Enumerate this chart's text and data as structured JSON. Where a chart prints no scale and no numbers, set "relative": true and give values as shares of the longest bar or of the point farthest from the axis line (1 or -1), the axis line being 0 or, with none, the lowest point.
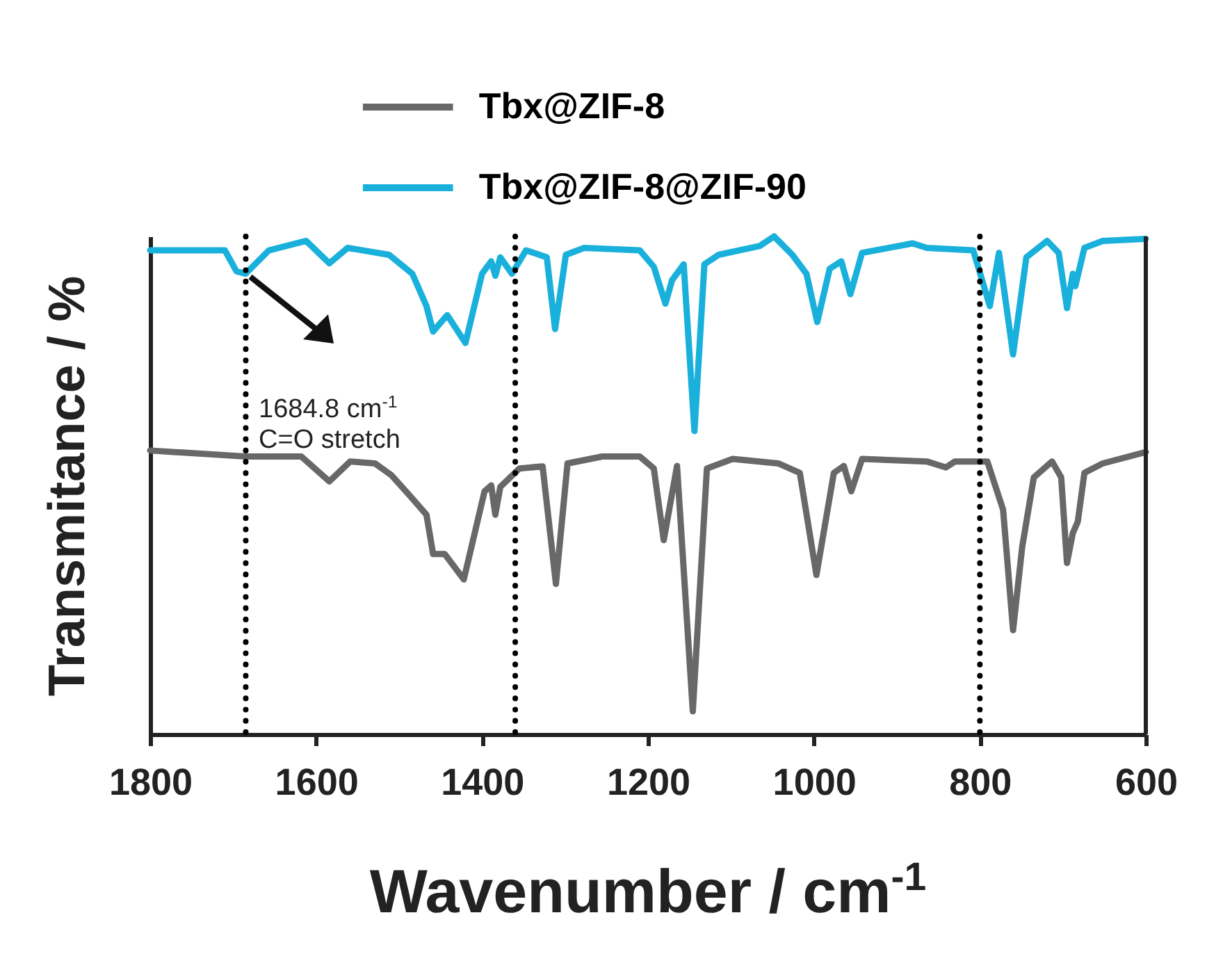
{
  "chart_data": {
    "type": "line",
    "relative": true,
    "xlabel": "Wavenumber / cm$^{-1}$",
    "ylabel": "Transmitance / %",
    "xlim": [
      1800,
      600
    ],
    "xticks": [
      1800,
      1600,
      1400,
      1200,
      1000,
      800,
      600
    ],
    "legend": "top",
    "grid": false,
    "marker": "none",
    "line_style": "solid",
    "series": [
      {
        "name": "Tbx@ZIF-8",
        "color": "#686868",
        "x": [
          1800,
          1685,
          1618,
          1584,
          1559,
          1529,
          1509,
          1489,
          1467,
          1459,
          1445,
          1422,
          1397,
          1389,
          1384,
          1378,
          1355,
          1327,
          1311,
          1297,
          1255,
          1210,
          1193,
          1181,
          1165,
          1146,
          1129,
          1098,
          1043,
          1017,
          997,
          976,
          964,
          955,
          942,
          864,
          841,
          830,
          791,
          772,
          760,
          749,
          735,
          713,
          702,
          695,
          688,
          682,
          674,
          652,
          600
        ],
        "values": [
          0.57,
          0.558,
          0.558,
          0.508,
          0.548,
          0.544,
          0.52,
          0.483,
          0.441,
          0.362,
          0.362,
          0.311,
          0.488,
          0.5,
          0.441,
          0.497,
          0.534,
          0.538,
          0.302,
          0.544,
          0.558,
          0.558,
          0.534,
          0.39,
          0.539,
          0.046,
          0.534,
          0.553,
          0.544,
          0.525,
          0.32,
          0.525,
          0.539,
          0.488,
          0.553,
          0.548,
          0.536,
          0.548,
          0.548,
          0.451,
          0.209,
          0.376,
          0.516,
          0.548,
          0.516,
          0.344,
          0.404,
          0.427,
          0.525,
          0.544,
          0.567
        ]
      },
      {
        "name": "Tbx@ZIF-8@ZIF-90",
        "color": "#1ab0dc",
        "x": [
          1800,
          1710,
          1696,
          1685,
          1657,
          1612,
          1584,
          1562,
          1512,
          1484,
          1467,
          1459,
          1442,
          1420,
          1400,
          1389,
          1384,
          1378,
          1364,
          1347,
          1322,
          1312,
          1299,
          1277,
          1210,
          1193,
          1179,
          1171,
          1157,
          1144,
          1132,
          1115,
          1065,
          1048,
          1026,
          1009,
          996,
          981,
          967,
          956,
          942,
          881,
          864,
          808,
          788,
          777,
          760,
          744,
          719,
          705,
          695,
          688,
          685,
          674,
          652,
          600
        ],
        "values": [
          0.972,
          0.972,
          0.93,
          0.925,
          0.972,
          0.991,
          0.946,
          0.977,
          0.963,
          0.925,
          0.86,
          0.809,
          0.842,
          0.786,
          0.925,
          0.95,
          0.921,
          0.958,
          0.925,
          0.972,
          0.958,
          0.814,
          0.963,
          0.977,
          0.972,
          0.939,
          0.865,
          0.912,
          0.944,
          0.609,
          0.944,
          0.963,
          0.981,
          1.0,
          0.963,
          0.925,
          0.828,
          0.935,
          0.95,
          0.884,
          0.967,
          0.986,
          0.977,
          0.972,
          0.86,
          0.967,
          0.763,
          0.958,
          0.991,
          0.967,
          0.856,
          0.925,
          0.9,
          0.977,
          0.991,
          0.995
        ]
      }
    ],
    "ref_lines": [
      {
        "axis": "x",
        "value": 1684.8,
        "color": "#000000",
        "line_style": "dotted"
      },
      {
        "axis": "x",
        "value": 1360,
        "color": "#000000",
        "line_style": "dotted"
      },
      {
        "axis": "x",
        "value": 800,
        "color": "#000000",
        "line_style": "dotted"
      }
    ],
    "annotations": [
      "1684.8 cm$^{-1}$",
      "C=O stretch"
    ]
  }
}
